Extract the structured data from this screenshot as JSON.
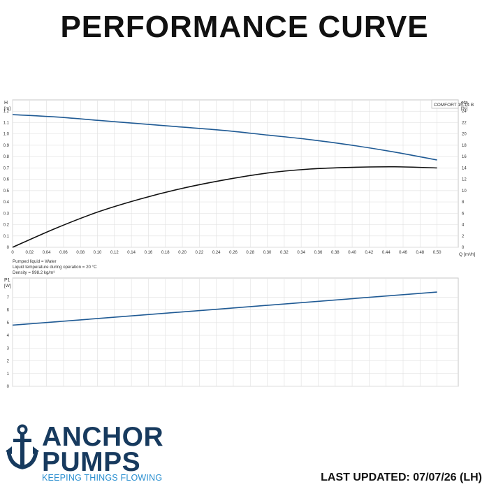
{
  "page": {
    "title": "PERFORMANCE CURVE",
    "last_updated": "LAST UPDATED: 07/07/26 (LH)"
  },
  "brand": {
    "line1": "ANCHOR",
    "line2": "PUMPS",
    "tagline": "KEEPING THINGS FLOWING",
    "icon": "anchor-icon",
    "color_primary": "#173a5e",
    "color_accent": "#2a8fd0"
  },
  "chart_data": [
    {
      "type": "line",
      "model_label": "COMFORT 15-14 B",
      "ylabel_left": "H",
      "yunit_left": "[m]",
      "ylabel_right": "eta",
      "yunit_right": "[%]",
      "xlabel": "Q [m³/h]",
      "x_ticks": [
        "0",
        "0.02",
        "0.04",
        "0.06",
        "0.08",
        "0.10",
        "0.12",
        "0.14",
        "0.16",
        "0.18",
        "0.20",
        "0.22",
        "0.24",
        "0.26",
        "0.28",
        "0.30",
        "0.32",
        "0.34",
        "0.36",
        "0.38",
        "0.40",
        "0.42",
        "0.44",
        "0.46",
        "0.48",
        "0.50"
      ],
      "xlim": [
        0,
        0.525
      ],
      "ylim_left": [
        0,
        1.3
      ],
      "ylim_right": [
        0,
        26
      ],
      "yticks_left": [
        "0",
        "0.1",
        "0.2",
        "0.3",
        "0.4",
        "0.5",
        "0.6",
        "0.7",
        "0.8",
        "0.9",
        "1.0",
        "1.1",
        "1.2"
      ],
      "yticks_right": [
        "0",
        "2",
        "4",
        "6",
        "8",
        "10",
        "12",
        "14",
        "16",
        "18",
        "20",
        "22",
        "24"
      ],
      "grid": true,
      "series": [
        {
          "axis": "left",
          "color": "#1f5a94",
          "x": [
            0,
            0.05,
            0.1,
            0.15,
            0.2,
            0.25,
            0.3,
            0.35,
            0.4,
            0.45,
            0.5
          ],
          "y": [
            1.17,
            1.15,
            1.12,
            1.09,
            1.06,
            1.03,
            0.99,
            0.95,
            0.9,
            0.84,
            0.77
          ]
        },
        {
          "axis": "right",
          "color": "#111111",
          "x": [
            0,
            0.05,
            0.1,
            0.15,
            0.2,
            0.25,
            0.3,
            0.35,
            0.4,
            0.45,
            0.5
          ],
          "y": [
            0,
            3.3,
            6.2,
            8.5,
            10.4,
            11.9,
            13.1,
            13.8,
            14.1,
            14.2,
            14.0
          ]
        }
      ]
    },
    {
      "type": "line",
      "ylabel": "P1",
      "yunit": "[W]",
      "ylim": [
        0,
        8.5
      ],
      "yticks": [
        "0",
        "1",
        "2",
        "3",
        "4",
        "5",
        "6",
        "7"
      ],
      "grid": true,
      "series": [
        {
          "color": "#1f5a94",
          "x": [
            0,
            0.5
          ],
          "y": [
            4.8,
            7.4
          ]
        }
      ]
    }
  ],
  "notes": {
    "line1": "Pumped liquid = Water",
    "line2": "Liquid temperature during operation = 20 °C",
    "line3": "Density = 998.2 kg/m³"
  }
}
